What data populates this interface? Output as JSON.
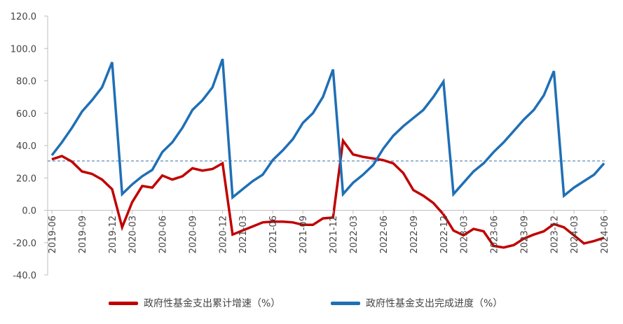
{
  "chart_data": {
    "type": "line",
    "title": "",
    "xlabel": "",
    "ylabel": "",
    "ylim": [
      -40,
      120
    ],
    "yticks": [
      -40,
      -20,
      0,
      20,
      40,
      60,
      80,
      100,
      120
    ],
    "ytick_labels": [
      "-40.0",
      "-20.0",
      "0.0",
      "20.0",
      "40.0",
      "60.0",
      "80.0",
      "100.0",
      "120.0"
    ],
    "xtick_labels": [
      "2019-06",
      "2019-09",
      "2019-12",
      "2020-03",
      "2020-06",
      "2020-09",
      "2020-12",
      "2021-03",
      "2021-06",
      "2021-09",
      "2021-12",
      "2022-03",
      "2022-06",
      "2022-09",
      "2022-12",
      "2023-03",
      "2023-06",
      "2023-09",
      "2023-12",
      "2024-03",
      "2024-06"
    ],
    "x": [
      "2019-06",
      "2019-07",
      "2019-08",
      "2019-09",
      "2019-10",
      "2019-11",
      "2019-12",
      "2020-02",
      "2020-03",
      "2020-04",
      "2020-05",
      "2020-06",
      "2020-07",
      "2020-08",
      "2020-09",
      "2020-10",
      "2020-11",
      "2020-12",
      "2021-02",
      "2021-03",
      "2021-04",
      "2021-05",
      "2021-06",
      "2021-07",
      "2021-08",
      "2021-09",
      "2021-10",
      "2021-11",
      "2021-12",
      "2022-02",
      "2022-03",
      "2022-04",
      "2022-05",
      "2022-06",
      "2022-07",
      "2022-08",
      "2022-09",
      "2022-10",
      "2022-11",
      "2022-12",
      "2023-02",
      "2023-03",
      "2023-04",
      "2023-05",
      "2023-06",
      "2023-07",
      "2023-08",
      "2023-09",
      "2023-10",
      "2023-11",
      "2023-12",
      "2024-02",
      "2024-03",
      "2024-04",
      "2024-05",
      "2024-06"
    ],
    "series": [
      {
        "name": "政府性基金支出累计增速（%）",
        "color": "#c00000",
        "values": [
          31.5,
          33.5,
          30,
          24,
          22.5,
          19,
          13,
          -10.5,
          5,
          15,
          14,
          21.5,
          19,
          21,
          26,
          24.5,
          25.5,
          29,
          -15,
          -12.5,
          -10,
          -7.5,
          -7,
          -7,
          -7.5,
          -9,
          -9,
          -5,
          -4.5,
          43,
          34.5,
          33,
          32,
          31,
          29,
          23,
          12.5,
          9,
          4.5,
          -2.5,
          -12.5,
          -15.5,
          -11.5,
          -13,
          -22,
          -23,
          -21.5,
          -17.5,
          -15,
          -13,
          -8.5,
          -10.5,
          -15.5,
          -20.5,
          -19,
          -17
        ]
      },
      {
        "name": "政府性基金支出完成进度（%）",
        "color": "#1f6fb5",
        "values": [
          34,
          42,
          51,
          61,
          68,
          76,
          91.5,
          10,
          16,
          21,
          25,
          36,
          42,
          51,
          62,
          68,
          76,
          93.5,
          8,
          13,
          18,
          22,
          31,
          37,
          44,
          54,
          60,
          70,
          87,
          10,
          17,
          22,
          28,
          38,
          46,
          52,
          57,
          62,
          70,
          79.5,
          10,
          17,
          24,
          29,
          36,
          42,
          49,
          56,
          62,
          71,
          86,
          9,
          14,
          18,
          22,
          29
        ]
      }
    ],
    "reference_line": {
      "value": 30.5,
      "color": "#3a6ea5",
      "style": "dashed"
    },
    "legend": {
      "placement": "bottom"
    }
  }
}
